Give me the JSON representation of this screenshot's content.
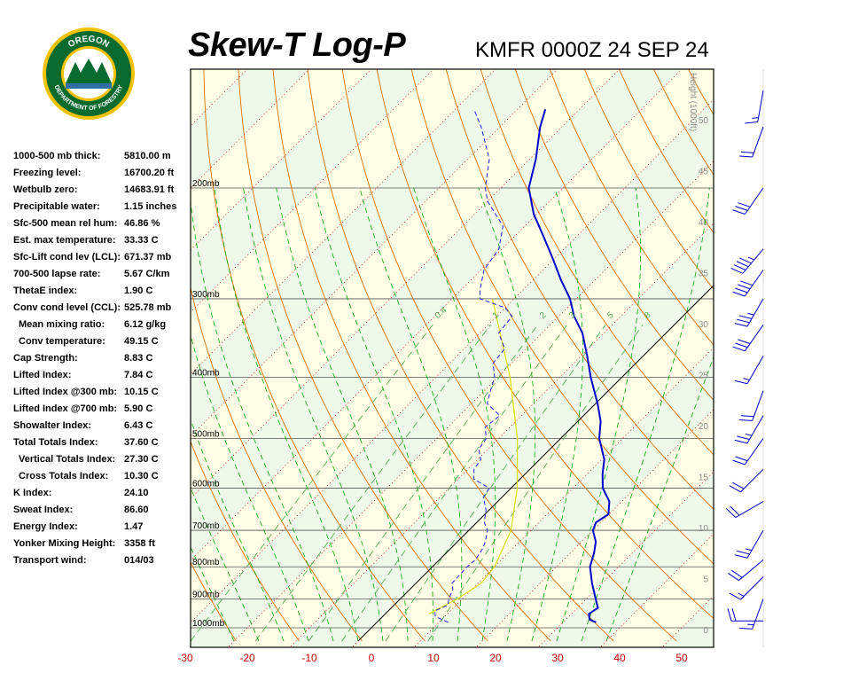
{
  "header": {
    "title": "Skew-T Log-P",
    "station": "KMFR 0000Z 24 SEP 24"
  },
  "logo": {
    "text_top": "OREGON",
    "text_ring": "DEPARTMENT OF FORESTRY"
  },
  "indices": [
    {
      "label": "1000-500 mb thick:",
      "value": "5810.00 m",
      "indent": false
    },
    {
      "label": "Freezing level:",
      "value": "16700.20 ft",
      "indent": false
    },
    {
      "label": "Wetbulb zero:",
      "value": "14683.91 ft",
      "indent": false
    },
    {
      "label": "Precipitable water:",
      "value": "1.15 inches",
      "indent": false
    },
    {
      "label": "Sfc-500 mean rel hum:",
      "value": "46.86 %",
      "indent": false
    },
    {
      "label": "Est. max temperature:",
      "value": "33.33 C",
      "indent": false
    },
    {
      "label": "Sfc-Lift cond lev (LCL):",
      "value": "671.37 mb",
      "indent": false
    },
    {
      "label": "700-500 lapse rate:",
      "value": "5.67 C/km",
      "indent": false
    },
    {
      "label": "ThetaE index:",
      "value": "1.90 C",
      "indent": false
    },
    {
      "label": "Conv cond level (CCL):",
      "value": "525.78 mb",
      "indent": false
    },
    {
      "label": "Mean mixing ratio:",
      "value": "6.12 g/kg",
      "indent": true
    },
    {
      "label": "Conv temperature:",
      "value": "49.15 C",
      "indent": true
    },
    {
      "label": "Cap Strength:",
      "value": "8.83 C",
      "indent": false
    },
    {
      "label": "Lifted Index:",
      "value": "7.84 C",
      "indent": false
    },
    {
      "label": "Lifted Index @300 mb:",
      "value": "10.15 C",
      "indent": false
    },
    {
      "label": "Lifted Index @700 mb:",
      "value": "5.90 C",
      "indent": false
    },
    {
      "label": "Showalter Index:",
      "value": "6.43 C",
      "indent": false
    },
    {
      "label": "Total Totals Index:",
      "value": "37.60 C",
      "indent": false
    },
    {
      "label": "Vertical Totals Index:",
      "value": "27.30 C",
      "indent": true
    },
    {
      "label": "Cross Totals Index:",
      "value": "10.30 C",
      "indent": true
    },
    {
      "label": "K Index:",
      "value": "24.10",
      "indent": false
    },
    {
      "label": "Sweat Index:",
      "value": "86.60",
      "indent": false
    },
    {
      "label": "Energy Index:",
      "value": "1.47",
      "indent": false
    },
    {
      "label": "Yonker Mixing Height:",
      "value": "3358 ft",
      "indent": false
    },
    {
      "label": "Transport wind:",
      "value": "014/03",
      "indent": false
    }
  ],
  "colors": {
    "temperature": "#0000cc",
    "dewpoint": "#2222ee",
    "parcel": "#e0e000",
    "dry_adiabat": "#e07000",
    "moist_adiabat": "#00aa00",
    "mixing_ratio": "#44aa44",
    "isotherm_dotted": "#cc0000",
    "wind_barb": "#0000cc",
    "band_yellow": "#fefde6",
    "band_green": "#eef9e9"
  },
  "chart_data": {
    "type": "skew-t",
    "title": "Skew-T Log-P",
    "subtitle": "KMFR 0000Z 24 SEP 24",
    "x_tick_labels": [
      "-30",
      "-20",
      "-10",
      "0",
      "10",
      "20",
      "30",
      "40",
      "50"
    ],
    "x_ticks": [
      -30,
      -20,
      -10,
      0,
      10,
      20,
      30,
      40,
      50
    ],
    "pressure_levels": [
      {
        "p": 200,
        "label": "200mb"
      },
      {
        "p": 300,
        "label": "300mb"
      },
      {
        "p": 400,
        "label": "400mb"
      },
      {
        "p": 500,
        "label": "500mb"
      },
      {
        "p": 600,
        "label": "600mb"
      },
      {
        "p": 700,
        "label": "700mb"
      },
      {
        "p": 800,
        "label": "800mb"
      },
      {
        "p": 900,
        "label": "900mb"
      },
      {
        "p": 1000,
        "label": "1000mb"
      }
    ],
    "height_axis_label": "Height (1000ft)",
    "height_ticks": [
      {
        "kft": 0,
        "label": "0"
      },
      {
        "kft": 5,
        "label": "5"
      },
      {
        "kft": 10,
        "label": "10"
      },
      {
        "kft": 15,
        "label": "15"
      },
      {
        "kft": 20,
        "label": "20"
      },
      {
        "kft": 25,
        "label": "25"
      },
      {
        "kft": 30,
        "label": "30"
      },
      {
        "kft": 35,
        "label": "35"
      },
      {
        "kft": 40,
        "label": "40"
      },
      {
        "kft": 45,
        "label": "45"
      },
      {
        "kft": 50,
        "label": "50"
      }
    ],
    "mixing_ratio_labels": [
      {
        "w": 0.4,
        "label": "0.4"
      },
      {
        "w": 1,
        "label": "1"
      },
      {
        "w": 2,
        "label": "2"
      },
      {
        "w": 3,
        "label": "3"
      },
      {
        "w": 5,
        "label": "5"
      },
      {
        "w": 8,
        "label": "8"
      }
    ],
    "temperature_profile": [
      {
        "p": 980,
        "t": 35.3
      },
      {
        "p": 970,
        "t": 33.8
      },
      {
        "p": 950,
        "t": 32.8
      },
      {
        "p": 930,
        "t": 33.3
      },
      {
        "p": 900,
        "t": 31.5
      },
      {
        "p": 850,
        "t": 28.4
      },
      {
        "p": 800,
        "t": 25.4
      },
      {
        "p": 760,
        "t": 23.8
      },
      {
        "p": 730,
        "t": 22.3
      },
      {
        "p": 700,
        "t": 20.0
      },
      {
        "p": 680,
        "t": 19.2
      },
      {
        "p": 660,
        "t": 19.9
      },
      {
        "p": 630,
        "t": 18.0
      },
      {
        "p": 600,
        "t": 14.8
      },
      {
        "p": 570,
        "t": 12.5
      },
      {
        "p": 540,
        "t": 10.4
      },
      {
        "p": 500,
        "t": 6.2
      },
      {
        "p": 470,
        "t": 3.7
      },
      {
        "p": 440,
        "t": 0.3
      },
      {
        "p": 400,
        "t": -5.0
      },
      {
        "p": 370,
        "t": -9.0
      },
      {
        "p": 340,
        "t": -13.5
      },
      {
        "p": 320,
        "t": -17.5
      },
      {
        "p": 300,
        "t": -21.0
      },
      {
        "p": 280,
        "t": -25.5
      },
      {
        "p": 260,
        "t": -30.0
      },
      {
        "p": 240,
        "t": -35.0
      },
      {
        "p": 220,
        "t": -40.5
      },
      {
        "p": 200,
        "t": -45.5
      },
      {
        "p": 180,
        "t": -49.0
      },
      {
        "p": 160,
        "t": -53.5
      },
      {
        "p": 150,
        "t": -55.5
      }
    ],
    "dewpoint_profile": [
      {
        "p": 980,
        "td": 11.5
      },
      {
        "p": 960,
        "td": 8.5
      },
      {
        "p": 940,
        "td": 7.5
      },
      {
        "p": 920,
        "td": 8.7
      },
      {
        "p": 900,
        "td": 7.8
      },
      {
        "p": 870,
        "td": 7.0
      },
      {
        "p": 850,
        "td": 5.8
      },
      {
        "p": 800,
        "td": 5.6
      },
      {
        "p": 780,
        "td": 5.8
      },
      {
        "p": 750,
        "td": 5.2
      },
      {
        "p": 730,
        "td": 4.5
      },
      {
        "p": 700,
        "td": 3.0
      },
      {
        "p": 680,
        "td": 1.2
      },
      {
        "p": 650,
        "td": -0.5
      },
      {
        "p": 620,
        "td": -3.0
      },
      {
        "p": 600,
        "td": -3.5
      },
      {
        "p": 580,
        "td": -7.5
      },
      {
        "p": 560,
        "td": -9.0
      },
      {
        "p": 540,
        "td": -9.5
      },
      {
        "p": 520,
        "td": -11.5
      },
      {
        "p": 500,
        "td": -12.0
      },
      {
        "p": 480,
        "td": -14.0
      },
      {
        "p": 460,
        "td": -13.5
      },
      {
        "p": 440,
        "td": -17.5
      },
      {
        "p": 420,
        "td": -19.0
      },
      {
        "p": 400,
        "td": -20.5
      },
      {
        "p": 380,
        "td": -23.0
      },
      {
        "p": 360,
        "td": -23.5
      },
      {
        "p": 340,
        "td": -27.0
      },
      {
        "p": 320,
        "td": -27.5
      },
      {
        "p": 310,
        "td": -30.0
      },
      {
        "p": 300,
        "td": -35.5
      },
      {
        "p": 290,
        "td": -37.0
      },
      {
        "p": 270,
        "td": -39.5
      },
      {
        "p": 250,
        "td": -40.5
      },
      {
        "p": 230,
        "td": -43.5
      },
      {
        "p": 210,
        "td": -50.0
      },
      {
        "p": 200,
        "td": -52.5
      },
      {
        "p": 180,
        "td": -56.5
      },
      {
        "p": 160,
        "td": -63.0
      },
      {
        "p": 150,
        "td": -67.0
      }
    ],
    "parcel_profile": [
      {
        "p": 950,
        "t": 7.0
      },
      {
        "p": 900,
        "t": 9.2
      },
      {
        "p": 850,
        "t": 10.5
      },
      {
        "p": 800,
        "t": 10.0
      },
      {
        "p": 700,
        "t": 6.8
      },
      {
        "p": 600,
        "t": 1.0
      },
      {
        "p": 500,
        "t": -7.0
      },
      {
        "p": 400,
        "t": -18.0
      },
      {
        "p": 300,
        "t": -33.5
      }
    ],
    "wind_barbs": [
      {
        "p": 975,
        "dir": 270,
        "spd": 20
      },
      {
        "p": 900,
        "dir": 200,
        "spd": 15
      },
      {
        "p": 830,
        "dir": 225,
        "spd": 15
      },
      {
        "p": 780,
        "dir": 230,
        "spd": 20
      },
      {
        "p": 700,
        "dir": 210,
        "spd": 25
      },
      {
        "p": 630,
        "dir": 240,
        "spd": 20
      },
      {
        "p": 560,
        "dir": 225,
        "spd": 20
      },
      {
        "p": 500,
        "dir": 215,
        "spd": 20
      },
      {
        "p": 460,
        "dir": 210,
        "spd": 25
      },
      {
        "p": 420,
        "dir": 200,
        "spd": 20
      },
      {
        "p": 370,
        "dir": 210,
        "spd": 15
      },
      {
        "p": 330,
        "dir": 215,
        "spd": 30
      },
      {
        "p": 300,
        "dir": 210,
        "spd": 35
      },
      {
        "p": 270,
        "dir": 215,
        "spd": 40
      },
      {
        "p": 250,
        "dir": 220,
        "spd": 45
      },
      {
        "p": 200,
        "dir": 215,
        "spd": 30
      },
      {
        "p": 160,
        "dir": 200,
        "spd": 20
      },
      {
        "p": 140,
        "dir": 190,
        "spd": 15
      }
    ]
  }
}
